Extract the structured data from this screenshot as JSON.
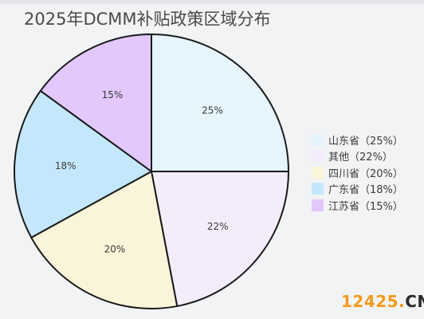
{
  "title": "2025年DCMM补贴政策区域分布",
  "chart_data": {
    "type": "pie",
    "title": "2025年DCMM补贴政策区域分布",
    "start_angle_deg": 0,
    "direction": "clockwise",
    "legend_position": "right",
    "slices": [
      {
        "label": "山东省",
        "legend": "山东省（25%）",
        "value": 25,
        "value_label": "25%",
        "color": "#e6f4fc"
      },
      {
        "label": "其他",
        "legend": "其他（22%）",
        "value": 22,
        "value_label": "22%",
        "color": "#f3ecfb"
      },
      {
        "label": "四川省",
        "legend": "四川省（20%）",
        "value": 20,
        "value_label": "20%",
        "color": "#faf4da"
      },
      {
        "label": "广东省",
        "legend": "广东省（18%）",
        "value": 18,
        "value_label": "18%",
        "color": "#c5e7fb"
      },
      {
        "label": "江苏省",
        "legend": "江苏省（15%）",
        "value": 15,
        "value_label": "15%",
        "color": "#e2c8fc"
      }
    ]
  },
  "watermark": {
    "number": "12425",
    "dot": ".",
    "suffix": "CN"
  }
}
